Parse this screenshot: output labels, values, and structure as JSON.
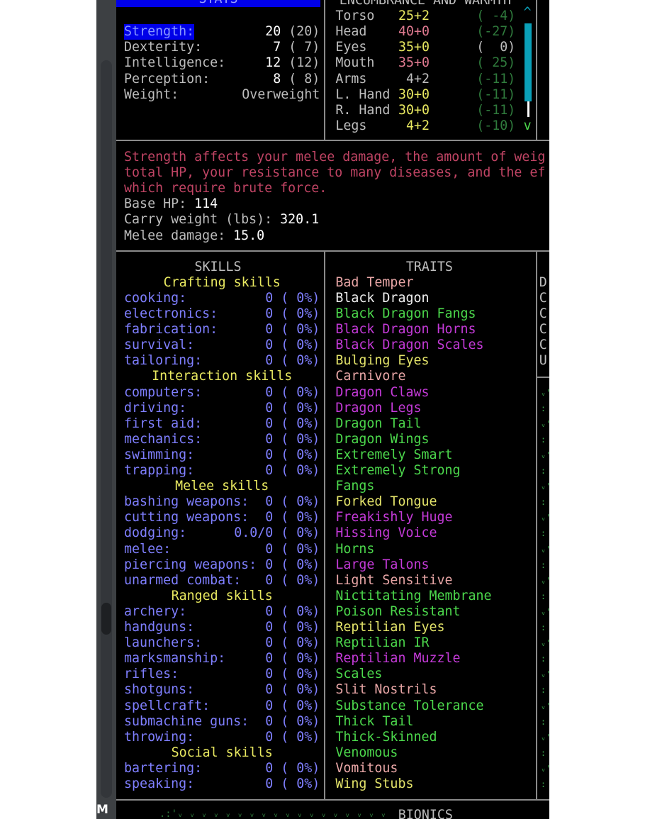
{
  "sidebar_fragment": {
    "label": "M"
  },
  "stats": {
    "header": "STATS",
    "rows": [
      {
        "label": "Strength:",
        "value": "20",
        "base": "(20)",
        "selected": true
      },
      {
        "label": "Dexterity:",
        "value": "7",
        "base": "( 7)"
      },
      {
        "label": "Intelligence:",
        "value": "12",
        "base": "(12)"
      },
      {
        "label": "Perception:",
        "value": "8",
        "base": "( 8)"
      },
      {
        "label": "Weight:",
        "value": "",
        "base": "Overweight"
      }
    ]
  },
  "encumbrance": {
    "header": "ENCUMBRANCE AND WARMTH",
    "scroll_up": "^",
    "scroll_down": "v",
    "rows": [
      {
        "part": "Torso",
        "enc": "25+2",
        "enc_color": "y",
        "warmth": "( -4)",
        "warmth_color": "dg"
      },
      {
        "part": "Head",
        "enc": "40+0",
        "enc_color": "r",
        "warmth": "(-27)",
        "warmth_color": "dg"
      },
      {
        "part": "Eyes",
        "enc": "35+0",
        "enc_color": "y",
        "warmth": "(  0)",
        "warmth_color": "g"
      },
      {
        "part": "Mouth",
        "enc": "35+0",
        "enc_color": "r",
        "warmth": "( 25)",
        "warmth_color": "dg"
      },
      {
        "part": "Arms",
        "enc": "4+2",
        "enc_color": "g",
        "warmth": "(-11)",
        "warmth_color": "dg"
      },
      {
        "part": "L. Hand",
        "enc": "30+0",
        "enc_color": "y",
        "warmth": "(-11)",
        "warmth_color": "dg"
      },
      {
        "part": "R. Hand",
        "enc": "30+0",
        "enc_color": "y",
        "warmth": "(-11)",
        "warmth_color": "dg"
      },
      {
        "part": "Legs",
        "enc": "4+2",
        "enc_color": "y",
        "warmth": "(-10)",
        "warmth_color": "dg"
      }
    ]
  },
  "description": {
    "lines": [
      "Strength affects your melee damage, the amount of weig",
      "total HP, your resistance to many diseases, and the ef",
      "which require brute force."
    ],
    "base_hp_label": "Base HP: ",
    "base_hp": "114",
    "carry_label": "Carry weight (lbs): ",
    "carry": "320.1",
    "melee_label": "Melee damage: ",
    "melee": "15.0"
  },
  "skills": {
    "header": "SKILLS",
    "rows": [
      {
        "category": "Crafting skills"
      },
      {
        "name": "cooking:",
        "value": "0 ( 0%)"
      },
      {
        "name": "electronics:",
        "value": "0 ( 0%)"
      },
      {
        "name": "fabrication:",
        "value": "0 ( 0%)"
      },
      {
        "name": "survival:",
        "value": "0 ( 0%)"
      },
      {
        "name": "tailoring:",
        "value": "0 ( 0%)"
      },
      {
        "category": "Interaction skills"
      },
      {
        "name": "computers:",
        "value": "0 ( 0%)"
      },
      {
        "name": "driving:",
        "value": "0 ( 0%)"
      },
      {
        "name": "first aid:",
        "value": "0 ( 0%)"
      },
      {
        "name": "mechanics:",
        "value": "0 ( 0%)"
      },
      {
        "name": "swimming:",
        "value": "0 ( 0%)"
      },
      {
        "name": "trapping:",
        "value": "0 ( 0%)"
      },
      {
        "category": "Melee skills"
      },
      {
        "name": "bashing weapons:",
        "value": "0 ( 0%)"
      },
      {
        "name": "cutting weapons:",
        "value": "0 ( 0%)"
      },
      {
        "name": "dodging:",
        "value": "0.0/0 ( 0%)"
      },
      {
        "name": "melee:",
        "value": "0 ( 0%)"
      },
      {
        "name": "piercing weapons:",
        "value": "0 ( 0%)"
      },
      {
        "name": "unarmed combat:",
        "value": "0 ( 0%)"
      },
      {
        "category": "Ranged skills"
      },
      {
        "name": "archery:",
        "value": "0 ( 0%)"
      },
      {
        "name": "handguns:",
        "value": "0 ( 0%)"
      },
      {
        "name": "launchers:",
        "value": "0 ( 0%)"
      },
      {
        "name": "marksmanship:",
        "value": "0 ( 0%)"
      },
      {
        "name": "rifles:",
        "value": "0 ( 0%)"
      },
      {
        "name": "shotguns:",
        "value": "0 ( 0%)"
      },
      {
        "name": "spellcraft:",
        "value": "0 ( 0%)"
      },
      {
        "name": "submachine guns:",
        "value": "0 ( 0%)"
      },
      {
        "name": "throwing:",
        "value": "0 ( 0%)"
      },
      {
        "category": "Social skills"
      },
      {
        "name": "bartering:",
        "value": "0 ( 0%)"
      },
      {
        "name": "speaking:",
        "value": "0 ( 0%)"
      }
    ]
  },
  "traits": {
    "header": "TRAITS",
    "items": [
      {
        "name": "Bad Temper",
        "color": "pink"
      },
      {
        "name": "Black Dragon",
        "color": "white"
      },
      {
        "name": "Black Dragon Fangs",
        "color": "green"
      },
      {
        "name": "Black Dragon Horns",
        "color": "magenta"
      },
      {
        "name": "Black Dragon Scales",
        "color": "magenta"
      },
      {
        "name": "Bulging Eyes",
        "color": "yellow"
      },
      {
        "name": "Carnivore",
        "color": "pink"
      },
      {
        "name": "Dragon Claws",
        "color": "magenta"
      },
      {
        "name": "Dragon Legs",
        "color": "magenta"
      },
      {
        "name": "Dragon Tail",
        "color": "green"
      },
      {
        "name": "Dragon Wings",
        "color": "green"
      },
      {
        "name": "Extremely Smart",
        "color": "green"
      },
      {
        "name": "Extremely Strong",
        "color": "green"
      },
      {
        "name": "Fangs",
        "color": "green"
      },
      {
        "name": "Forked Tongue",
        "color": "yellow"
      },
      {
        "name": "Freakishly Huge",
        "color": "magenta"
      },
      {
        "name": "Hissing Voice",
        "color": "magenta"
      },
      {
        "name": "Horns",
        "color": "green"
      },
      {
        "name": "Large Talons",
        "color": "magenta"
      },
      {
        "name": "Light Sensitive",
        "color": "pink"
      },
      {
        "name": "Nictitating Membrane",
        "color": "green"
      },
      {
        "name": "Poison Resistant",
        "color": "green"
      },
      {
        "name": "Reptilian Eyes",
        "color": "yellow"
      },
      {
        "name": "Reptilian IR",
        "color": "green"
      },
      {
        "name": "Reptilian Muzzle",
        "color": "magenta"
      },
      {
        "name": "Scales",
        "color": "green"
      },
      {
        "name": "Slit Nostrils",
        "color": "pink"
      },
      {
        "name": "Substance Tolerance",
        "color": "green"
      },
      {
        "name": "Thick Tail",
        "color": "green"
      },
      {
        "name": "Thick-Skinned",
        "color": "green"
      },
      {
        "name": "Venomous",
        "color": "green"
      },
      {
        "name": "Vomitous",
        "color": "pink"
      },
      {
        "name": "Wing Stubs",
        "color": "yellow"
      }
    ]
  },
  "right_panel": {
    "letters": [
      "D",
      "C",
      "C",
      "C",
      "C",
      "U"
    ]
  },
  "bottom": {
    "bionics_header": "BIONICS",
    "map_fragment": ".:'ᵥ ᵥ ᵥ ᵥ ᵥ ᵥ ᵥ ᵥ ᵥ ᵥ ᵥ ᵥ ᵥ ᵥ ᵥ ᵥ ᵥ ᵥ"
  },
  "colors": {
    "selection": "#0000e8",
    "scrollbar": "#0aa0b8",
    "skill": "#7f7fff",
    "category": "#e8e860"
  }
}
